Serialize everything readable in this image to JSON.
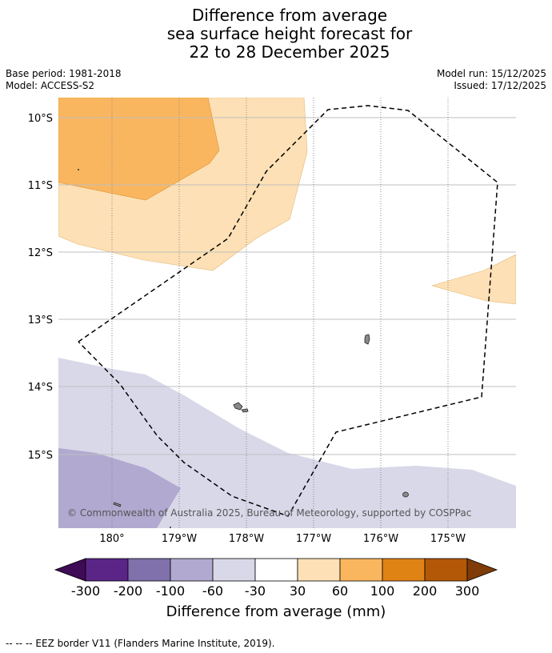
{
  "title": {
    "line1": "Difference from average",
    "line2": "sea surface height forecast for",
    "line3": "22 to 28 December 2025"
  },
  "meta": {
    "base_period": "Base period: 1981-2018",
    "model": "Model: ACCESS-S2",
    "model_run": "Model run: 15/12/2025",
    "issued": "Issued: 17/12/2025"
  },
  "map": {
    "lat_labels": [
      "10°S",
      "11°S",
      "12°S",
      "13°S",
      "14°S",
      "15°S"
    ],
    "lon_labels": [
      "180°",
      "179°W",
      "178°W",
      "177°W",
      "176°W",
      "175°W"
    ],
    "copyright": "© Commonwealth of Australia 2025, Bureau of Meteorology, supported by COSPPac"
  },
  "colorbar": {
    "label": "Difference from average (mm)",
    "ticks": [
      "-300",
      "-200",
      "-100",
      "-60",
      "-30",
      "30",
      "60",
      "100",
      "200",
      "300"
    ],
    "colors": [
      "#3f0a56",
      "#5a2587",
      "#8070ac",
      "#b1a9d0",
      "#d8d8e9",
      "#ffffff",
      "#fde0b5",
      "#fab65f",
      "#e08315",
      "#b35806",
      "#7f3b08"
    ]
  },
  "footer": {
    "legend_text": "--  --  -- EEZ border V11 (Flanders Marine Institute, 2019)."
  }
}
